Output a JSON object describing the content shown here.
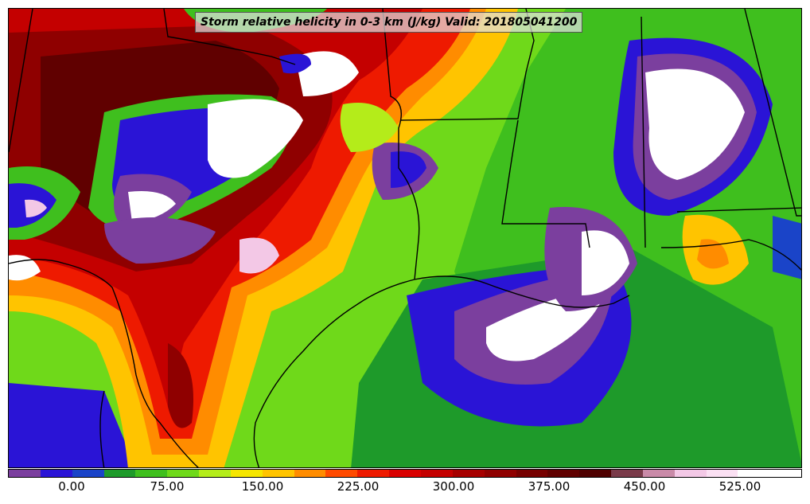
{
  "title": "Storm relative helicity in 0-3 km (J/kg) Valid: 201805041200",
  "colorbar": {
    "colors": [
      "#7b3f9e",
      "#2a14d6",
      "#1a44c8",
      "#1e9a2a",
      "#3fbf1e",
      "#6fd91a",
      "#b4ec1a",
      "#f5e600",
      "#ffc400",
      "#ff8c00",
      "#ff4a00",
      "#ee1a00",
      "#d90000",
      "#c40000",
      "#a60000",
      "#8f0000",
      "#760000",
      "#600000",
      "#4e0000",
      "#7a3b4a",
      "#c98aa8",
      "#f3c8e6",
      "#fbe0f3",
      "#ffffff",
      "#ffffff"
    ],
    "ticks": [
      "0.00",
      "75.00",
      "150.00",
      "225.00",
      "300.00",
      "375.00",
      "450.00",
      "525.00"
    ]
  }
}
